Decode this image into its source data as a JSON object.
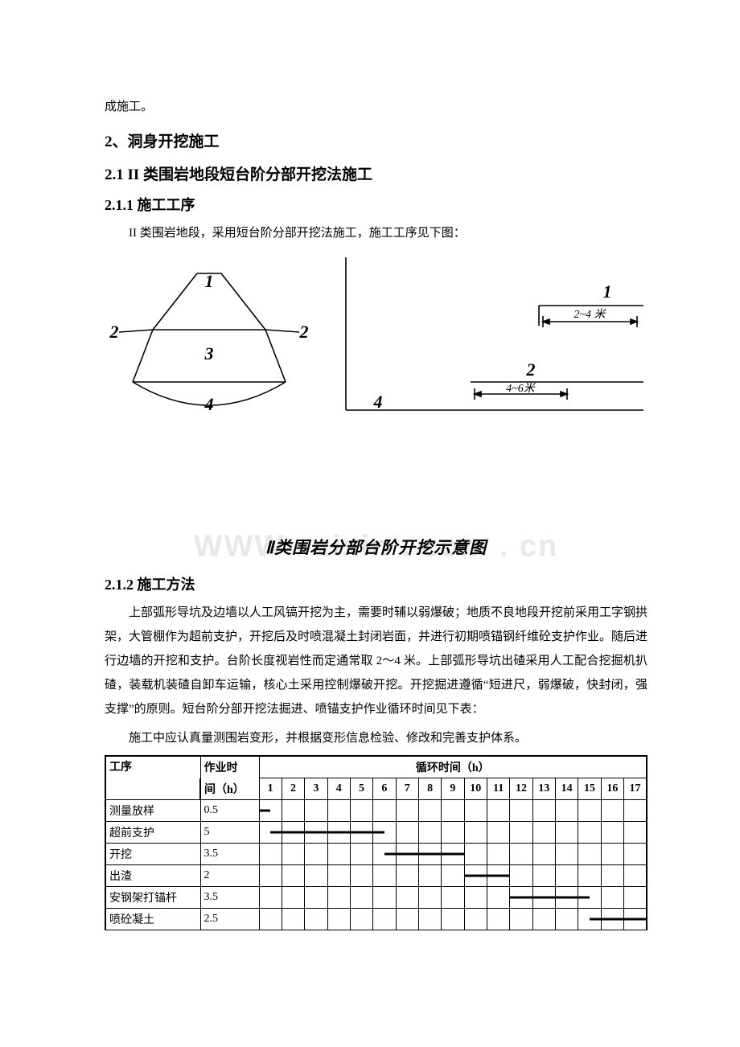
{
  "continuation": "成施工。",
  "h2": "2、洞身开挖施工",
  "h3": "2.1 II 类围岩地段短台阶分部开挖法施工",
  "h4a": "2.1.1 施工工序",
  "p1": "II 类围岩地段，采用短台阶分部开挖法施工，施工工序见下图：",
  "diagram": {
    "cross_nums": [
      "1",
      "2",
      "3",
      "2",
      "4"
    ],
    "side_nums": [
      "1",
      "2",
      "4"
    ],
    "side_dims": [
      "2~4 米",
      "4~6米"
    ],
    "caption": "Ⅱ类围岩分部台阶开挖示意图",
    "watermark": "WWW . zixin . com . cn"
  },
  "h4b": "2.1.2 施工方法",
  "p2": "上部弧形导坑及边墙以人工风镐开挖为主，需要时辅以弱爆破；地质不良地段开挖前采用工字钢拱架，大管棚作为超前支护，开挖后及时喷混凝土封闭岩面，并进行初期喷锚钢纤维砼支护作业。随后进行边墙的开挖和支护。台阶长度视岩性而定通常取 2～4 米。上部弧形导坑出碴采用人工配合挖掘机扒碴，装载机装碴自卸车运输，核心土采用控制爆破开挖。开挖掘进遵循“短进尺，弱爆破，快封闭，强支撑”的原则。短台阶分部开挖法掘进、喷锚支护作业循环时间见下表：",
  "p3": "施工中应认真量测围岩变形，并根据变形信息检验、修改和完善支护体系。",
  "table": {
    "header_task": "工序",
    "header_dur1": "作业时",
    "header_dur2": "间（h）",
    "header_cycle": "循环时间（h）",
    "cols": [
      "1",
      "2",
      "3",
      "4",
      "5",
      "6",
      "7",
      "8",
      "9",
      "10",
      "11",
      "12",
      "13",
      "14",
      "15",
      "16",
      "17"
    ],
    "rows": [
      {
        "task": "测量放样",
        "dur": "0.5",
        "bar_start": 1,
        "bar_end": 1.5
      },
      {
        "task": "超前支护",
        "dur": "5",
        "bar_start": 1.5,
        "bar_end": 6.5
      },
      {
        "task": "开挖",
        "dur": "3.5",
        "bar_start": 6.5,
        "bar_end": 10
      },
      {
        "task": "出渣",
        "dur": "2",
        "bar_start": 10,
        "bar_end": 12
      },
      {
        "task": "安钢架打锚杆",
        "dur": "3.5",
        "bar_start": 12,
        "bar_end": 15.5
      },
      {
        "task": "喷砼凝土",
        "dur": "2.5",
        "bar_start": 15.5,
        "bar_end": 18
      }
    ],
    "colors": {
      "border": "#000000",
      "bar": "#000000",
      "bg": "#ffffff"
    }
  },
  "svg": {
    "stroke": "#000000",
    "stroke_width": 1.6,
    "font": "italic bold 22px serif",
    "dim_font": "italic 14px serif"
  }
}
